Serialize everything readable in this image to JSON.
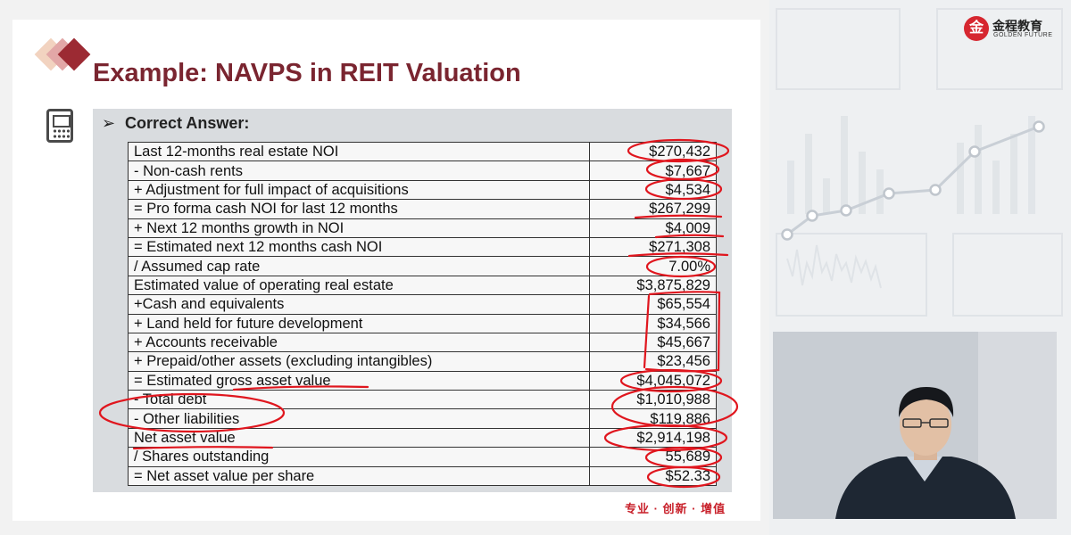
{
  "slide": {
    "title": "Example: NAVPS in REIT Valuation",
    "subtitle_bullet": "➢",
    "subtitle": "Correct Answer:",
    "tagline": "专业 · 创新 · 增值",
    "colors": {
      "title": "#7a2530",
      "tagline": "#c8202a",
      "annotation": "#e0161e",
      "panel": "#d9dcdf"
    },
    "icon": "calculator-icon"
  },
  "table": {
    "rows": [
      {
        "label": "Last 12-months real estate NOI",
        "value": "$270,432"
      },
      {
        "label": "-  Non-cash rents",
        "value": "$7,667"
      },
      {
        "label": "+ Adjustment for full impact of acquisitions",
        "value": "$4,534"
      },
      {
        "label": "= Pro forma cash NOI for last 12 months",
        "value": "$267,299"
      },
      {
        "label": "+ Next 12 months growth in NOI",
        "value": "$4,009"
      },
      {
        "label": "= Estimated next 12 months cash NOI",
        "value": "$271,308"
      },
      {
        "label": "/ Assumed cap rate",
        "value": "7.00%"
      },
      {
        "label": "Estimated value of operating real estate",
        "value": "$3,875,829"
      },
      {
        "label": "+Cash and equivalents",
        "value": "$65,554"
      },
      {
        "label": "+ Land held for future development",
        "value": "$34,566"
      },
      {
        "label": "+ Accounts receivable",
        "value": "$45,667"
      },
      {
        "label": "+ Prepaid/other assets (excluding intangibles)",
        "value": "$23,456"
      },
      {
        "label": "= Estimated gross asset value",
        "value": "$4,045,072"
      },
      {
        "label": "-  Total debt",
        "value": "$1,010,988"
      },
      {
        "label": "-  Other liabilities",
        "value": "$119,886"
      },
      {
        "label": "Net asset value",
        "value": "$2,914,198"
      },
      {
        "label": "/ Shares outstanding",
        "value": "55,689"
      },
      {
        "label": "= Net asset value per share",
        "value": "$52.33"
      }
    ]
  },
  "logo": {
    "mark": "金",
    "name_cn": "金程教育",
    "name_en": "GOLDEN FUTURE"
  },
  "webcam": {
    "description_icon": "presenter-video-icon"
  }
}
